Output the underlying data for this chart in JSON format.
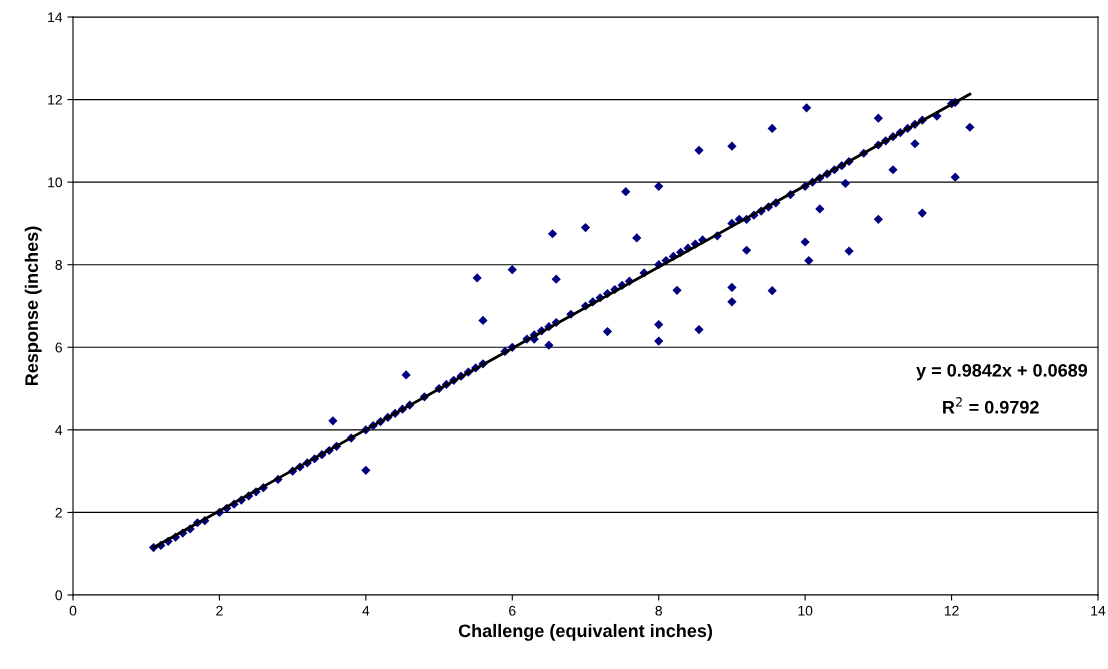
{
  "chart_data": {
    "type": "scatter",
    "xlabel": "Challenge (equivalent inches)",
    "ylabel": "Response (inches)",
    "xlim": [
      0,
      14
    ],
    "ylim": [
      0,
      14
    ],
    "xticks": [
      0,
      2,
      4,
      6,
      8,
      10,
      12,
      14
    ],
    "yticks": [
      0,
      2,
      4,
      6,
      8,
      10,
      12,
      14
    ],
    "grid": "y",
    "marker": "diamond",
    "legend": false,
    "annotations": [
      "y = 0.9842x + 0.0689",
      "R$^{2}$ = 0.9792"
    ],
    "series": [
      {
        "color": "#000080",
        "x": [
          1.1,
          1.2,
          1.3,
          1.4,
          1.5,
          1.6,
          1.7,
          1.8,
          2.0,
          2.1,
          2.2,
          2.3,
          2.4,
          2.5,
          2.6,
          2.8,
          3.0,
          3.1,
          3.2,
          3.3,
          3.4,
          3.5,
          3.6,
          3.8,
          4.0,
          4.1,
          4.2,
          4.3,
          4.4,
          4.5,
          4.6,
          4.8,
          5.0,
          5.1,
          5.2,
          5.3,
          5.4,
          5.5,
          5.6,
          5.9,
          6.0,
          6.2,
          6.3,
          6.4,
          6.5,
          6.6,
          6.8,
          7.0,
          7.1,
          7.2,
          7.3,
          7.4,
          7.5,
          7.6,
          7.8,
          8.0,
          8.1,
          8.2,
          8.3,
          8.4,
          8.5,
          8.6,
          8.8,
          9.0,
          9.1,
          9.2,
          9.3,
          9.4,
          9.5,
          9.6,
          9.8,
          10.0,
          10.1,
          10.2,
          10.3,
          10.4,
          10.5,
          10.6,
          10.8,
          11.0,
          11.1,
          11.2,
          11.3,
          11.4,
          11.5,
          11.6,
          11.8,
          12.0,
          4.0,
          3.55,
          4.55,
          5.52,
          5.6,
          6.0,
          6.55,
          7.0,
          7.55,
          8.0,
          8.55,
          9.0,
          9.55,
          10.02,
          11.0,
          12.05,
          12.25,
          12.05,
          11.6,
          11.0,
          10.6,
          10.0,
          10.05,
          10.2,
          9.55,
          9.0,
          9.0,
          8.55,
          8.0,
          8.0,
          7.3,
          6.5,
          6.6,
          6.3,
          7.7,
          8.25,
          9.2,
          10.55,
          11.2,
          11.5
        ],
        "values": [
          1.15,
          1.2,
          1.3,
          1.4,
          1.5,
          1.6,
          1.75,
          1.8,
          2.0,
          2.1,
          2.2,
          2.3,
          2.4,
          2.5,
          2.6,
          2.8,
          3.0,
          3.1,
          3.2,
          3.3,
          3.4,
          3.5,
          3.6,
          3.8,
          4.0,
          4.1,
          4.2,
          4.3,
          4.4,
          4.5,
          4.6,
          4.8,
          5.0,
          5.1,
          5.2,
          5.3,
          5.4,
          5.5,
          5.6,
          5.9,
          6.0,
          6.2,
          6.3,
          6.4,
          6.5,
          6.6,
          6.8,
          7.0,
          7.1,
          7.2,
          7.3,
          7.4,
          7.5,
          7.6,
          7.8,
          8.0,
          8.1,
          8.2,
          8.3,
          8.4,
          8.5,
          8.6,
          8.7,
          9.0,
          9.1,
          9.1,
          9.2,
          9.3,
          9.4,
          9.5,
          9.7,
          9.9,
          10.0,
          10.1,
          10.2,
          10.3,
          10.4,
          10.5,
          10.7,
          10.9,
          11.0,
          11.1,
          11.2,
          11.3,
          11.4,
          11.5,
          11.6,
          11.9,
          3.02,
          4.22,
          5.33,
          7.68,
          6.65,
          7.88,
          8.75,
          8.9,
          9.77,
          9.9,
          10.77,
          10.87,
          11.3,
          11.8,
          11.55,
          11.93,
          11.33,
          10.12,
          9.25,
          9.1,
          8.33,
          8.55,
          8.1,
          9.35,
          7.37,
          7.1,
          7.45,
          6.43,
          6.55,
          6.15,
          6.38,
          6.05,
          7.65,
          6.2,
          8.65,
          7.38,
          8.35,
          9.97,
          10.3,
          10.93
        ]
      },
      {
        "type": "line",
        "marker": "none",
        "color": "#000000",
        "x": [
          1.1,
          12.25
        ],
        "values": [
          1.15,
          12.13
        ]
      }
    ]
  }
}
